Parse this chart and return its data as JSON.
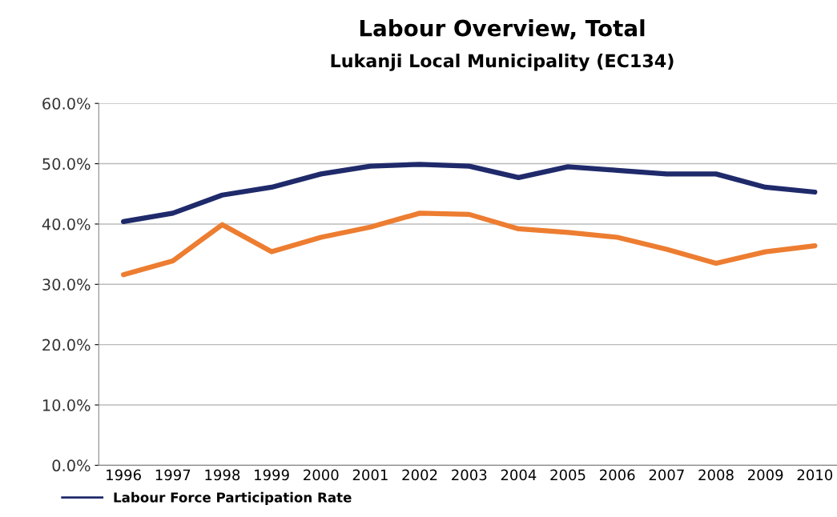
{
  "chart_data": {
    "type": "line",
    "title": "Labour Overview, Total",
    "subtitle": "Lukanji Local Municipality (EC134)",
    "categories": [
      "1996",
      "1997",
      "1998",
      "1999",
      "2000",
      "2001",
      "2002",
      "2003",
      "2004",
      "2005",
      "2006",
      "2007",
      "2008",
      "2009",
      "2010"
    ],
    "series": [
      {
        "name": "Labour Force Participation Rate",
        "color": "#1f2a6b",
        "values": [
          40.4,
          41.8,
          44.8,
          46.1,
          48.3,
          49.6,
          49.9,
          49.6,
          47.7,
          49.5,
          48.9,
          48.3,
          48.3,
          46.1,
          45.3
        ]
      },
      {
        "color": "#ed7d31",
        "values": [
          31.6,
          33.9,
          39.9,
          35.4,
          37.8,
          39.5,
          41.8,
          41.6,
          39.2,
          38.6,
          37.8,
          35.8,
          33.5,
          35.4,
          36.4
        ]
      }
    ],
    "ylim": [
      0,
      60
    ],
    "yticks": [
      {
        "value": 0,
        "label": "0.0%"
      },
      {
        "value": 10,
        "label": "10.0%"
      },
      {
        "value": 20,
        "label": "20.0%"
      },
      {
        "value": 30,
        "label": "30.0%"
      },
      {
        "value": 40,
        "label": "40.0%"
      },
      {
        "value": 50,
        "label": "50.0%"
      },
      {
        "value": 60,
        "label": "60.0%"
      }
    ],
    "grid": "y",
    "legend": "bottom left",
    "marker": "none",
    "line_style": "solid"
  }
}
